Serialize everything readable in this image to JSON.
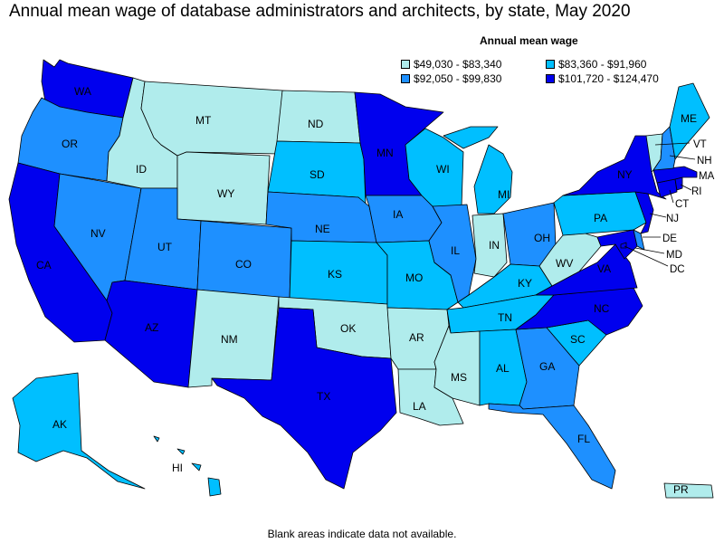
{
  "title": "Annual mean wage of database administrators and architects, by state, May 2020",
  "legend": {
    "title": "Annual mean wage",
    "bins": [
      {
        "label": "$49,030 - $83,340",
        "color": "#b0ecec"
      },
      {
        "label": "$83,360 - $91,960",
        "color": "#00bfff"
      },
      {
        "label": "$92,050 - $99,830",
        "color": "#1e90ff"
      },
      {
        "label": "$101,720 - $124,470",
        "color": "#0000ee"
      }
    ]
  },
  "footnote": "Blank areas indicate data not available.",
  "states": {
    "WA": 3,
    "OR": 2,
    "CA": 3,
    "NV": 2,
    "ID": 0,
    "MT": 0,
    "WY": 0,
    "UT": 2,
    "AZ": 3,
    "CO": 2,
    "NM": 0,
    "ND": 0,
    "SD": 1,
    "NE": 2,
    "KS": 1,
    "OK": 0,
    "TX": 3,
    "MN": 3,
    "IA": 2,
    "MO": 1,
    "AR": 0,
    "LA": 0,
    "WI": 1,
    "IL": 2,
    "MI": 1,
    "IN": 0,
    "OH": 2,
    "KY": 1,
    "TN": 1,
    "MS": 0,
    "AL": 1,
    "GA": 2,
    "FL": 2,
    "SC": 1,
    "NC": 3,
    "VA": 3,
    "WV": 0,
    "PA": 1,
    "NY": 3,
    "ME": 1,
    "VT": 0,
    "NH": 2,
    "MA": 3,
    "RI": 3,
    "CT": 3,
    "NJ": 3,
    "DE": 2,
    "MD": 3,
    "DC": 3,
    "AK": 1,
    "HI": 1,
    "PR": 0
  }
}
